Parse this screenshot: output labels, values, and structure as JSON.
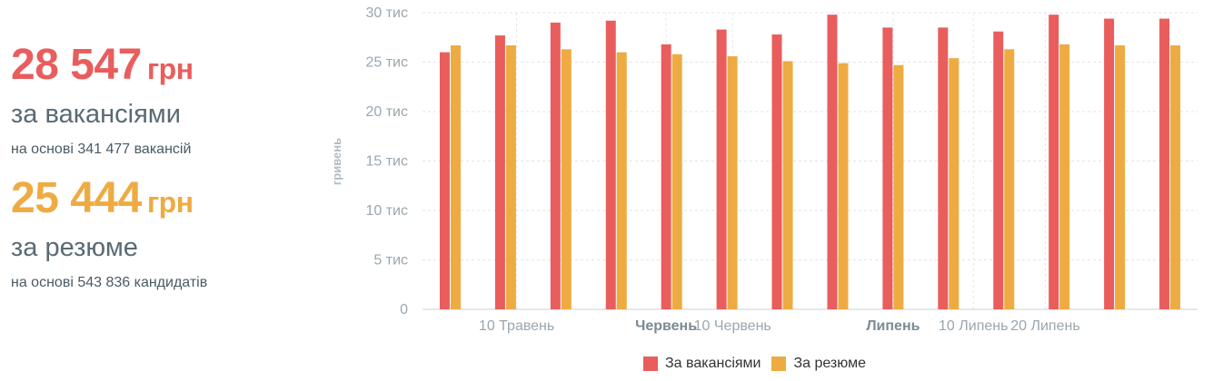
{
  "stats": {
    "vacancies": {
      "amount": "28 547",
      "currency": "грн",
      "label": "за вакансіями",
      "sub": "на основі 341 477 вакансій",
      "color": "#e95d5d"
    },
    "resumes": {
      "amount": "25 444",
      "currency": "грн",
      "label": "за резюме",
      "sub": "на основі 543 836 кандидатів",
      "color": "#eeab42"
    }
  },
  "legend": {
    "vacancies": "За вакансіями",
    "resumes": "За резюме"
  },
  "chart_data": {
    "type": "bar",
    "ylabel": "гривень",
    "ylim": [
      0,
      30000
    ],
    "yticks": [
      {
        "value": 0,
        "label": "0"
      },
      {
        "value": 5000,
        "label": "5 тис"
      },
      {
        "value": 10000,
        "label": "10 тис"
      },
      {
        "value": 15000,
        "label": "15 тис"
      },
      {
        "value": 20000,
        "label": "20 тис"
      },
      {
        "value": 25000,
        "label": "25 тис"
      },
      {
        "value": 30000,
        "label": "30 тис"
      }
    ],
    "xticks": [
      {
        "label": "10 Травень",
        "bold": false,
        "at": 1.7
      },
      {
        "label": "Червень",
        "bold": true,
        "at": 4.4
      },
      {
        "label": "10 Червень",
        "bold": false,
        "at": 5.6
      },
      {
        "label": "Липень",
        "bold": true,
        "at": 8.5
      },
      {
        "label": "10 Липень",
        "bold": false,
        "at": 9.95
      },
      {
        "label": "20 Липень",
        "bold": false,
        "at": 11.25
      }
    ],
    "grid": true,
    "legend_position": "bottom",
    "categories": [
      "1",
      "2",
      "3",
      "4",
      "5",
      "6",
      "7",
      "8",
      "9",
      "10",
      "11",
      "12",
      "13",
      "14"
    ],
    "series": [
      {
        "name": "За вакансіями",
        "color": "#e95d5d",
        "values": [
          26000,
          27700,
          29000,
          29200,
          26800,
          28300,
          27800,
          29800,
          28500,
          28500,
          28100,
          29800,
          29400,
          29400
        ]
      },
      {
        "name": "За резюме",
        "color": "#eeab42",
        "values": [
          26700,
          26700,
          26300,
          26000,
          25800,
          25600,
          25100,
          24900,
          24700,
          25400,
          26300,
          26800,
          26700,
          26700
        ]
      }
    ]
  }
}
